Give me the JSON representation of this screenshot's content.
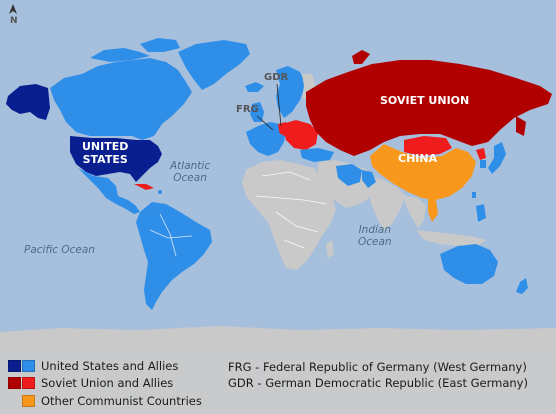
{
  "map": {
    "compass": {
      "letter": "N",
      "icon": "north-arrow-icon"
    },
    "country_labels": {
      "usa_line1": "UNITED",
      "usa_line2": "STATES",
      "ussr": "SOVIET UNION",
      "china": "CHINA",
      "frg": "FRG",
      "gdr": "GDR"
    },
    "ocean_labels": {
      "atlantic_line1": "Atlantic",
      "atlantic_line2": "Ocean",
      "pacific": "Pacific Ocean",
      "indian_line1": "Indian",
      "indian_line2": "Ocean"
    }
  },
  "legend": {
    "items": [
      {
        "label": "United States and Allies",
        "colors": [
          "#0a1f8f",
          "#2f8fe8"
        ]
      },
      {
        "label": "Soviet Union and Allies",
        "colors": [
          "#b00000",
          "#ee1c1c"
        ]
      },
      {
        "label": "Other Communist Countries",
        "colors": [
          "#f7981d"
        ]
      }
    ],
    "abbreviations": [
      "FRG - Federal Republic of Germany (West Germany)",
      "GDR - German Democratic Republic (East Germany)"
    ]
  },
  "colors": {
    "ocean": "#a6bfdc",
    "neutral_land": "#c9c9c9",
    "us_core": "#0a1f8f",
    "us_allies": "#2f8fe8",
    "ussr": "#b00000",
    "soviet_allies": "#ee1c1c",
    "china": "#f7981d"
  }
}
